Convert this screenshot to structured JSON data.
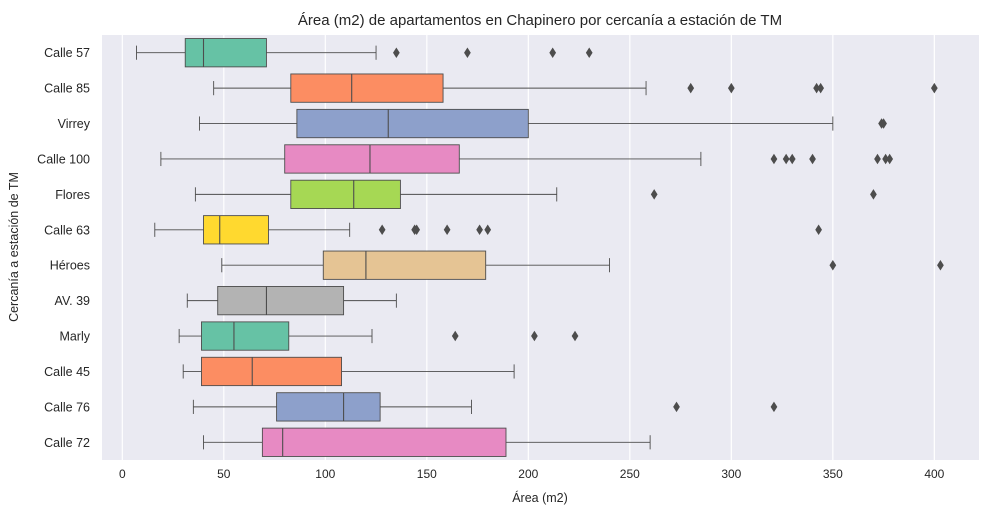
{
  "chart_data": {
    "type": "boxplot",
    "orientation": "horizontal",
    "title": "Área (m2) de apartamentos en Chapinero por cercanía a estación de TM",
    "xlabel": "Área (m2)",
    "ylabel": "Cercanía a estación de TM",
    "xlim": [
      -10,
      422
    ],
    "xticks": [
      0,
      50,
      100,
      150,
      200,
      250,
      300,
      350,
      400
    ],
    "grid": true,
    "background": "#eaeaf2",
    "categories": [
      "Calle 57",
      "Calle 85",
      "Virrey",
      "Calle 100",
      "Flores",
      "Calle 63",
      "Héroes",
      "AV. 39",
      "Marly",
      "Calle 45",
      "Calle 76",
      "Calle 72"
    ],
    "boxes": [
      {
        "category": "Calle 57",
        "color": "#66c2a5",
        "whisker_low": 7,
        "q1": 31,
        "median": 40,
        "q3": 71,
        "whisker_high": 125,
        "outliers": [
          135,
          170,
          212,
          230
        ]
      },
      {
        "category": "Calle 85",
        "color": "#fc8d62",
        "whisker_low": 45,
        "q1": 83,
        "median": 113,
        "q3": 158,
        "whisker_high": 258,
        "outliers": [
          280,
          300,
          342,
          344,
          400
        ]
      },
      {
        "category": "Virrey",
        "color": "#8da0cb",
        "whisker_low": 38,
        "q1": 86,
        "median": 131,
        "q3": 200,
        "whisker_high": 350,
        "outliers": [
          374,
          375
        ]
      },
      {
        "category": "Calle 100",
        "color": "#e78ac3",
        "whisker_low": 19,
        "q1": 80,
        "median": 122,
        "q3": 166,
        "whisker_high": 285,
        "outliers": [
          321,
          327,
          330,
          340,
          372,
          376,
          378
        ]
      },
      {
        "category": "Flores",
        "color": "#a6d854",
        "whisker_low": 36,
        "q1": 83,
        "median": 114,
        "q3": 137,
        "whisker_high": 214,
        "outliers": [
          262,
          370
        ]
      },
      {
        "category": "Calle 63",
        "color": "#ffd92f",
        "whisker_low": 16,
        "q1": 40,
        "median": 48,
        "q3": 72,
        "whisker_high": 112,
        "outliers": [
          128,
          144,
          145,
          160,
          176,
          180,
          343
        ]
      },
      {
        "category": "Héroes",
        "color": "#e5c494",
        "whisker_low": 49,
        "q1": 99,
        "median": 120,
        "q3": 179,
        "whisker_high": 240,
        "outliers": [
          350,
          403
        ]
      },
      {
        "category": "AV. 39",
        "color": "#b3b3b3",
        "whisker_low": 32,
        "q1": 47,
        "median": 71,
        "q3": 109,
        "whisker_high": 135,
        "outliers": []
      },
      {
        "category": "Marly",
        "color": "#66c2a5",
        "whisker_low": 28,
        "q1": 39,
        "median": 55,
        "q3": 82,
        "whisker_high": 123,
        "outliers": [
          164,
          203,
          223
        ]
      },
      {
        "category": "Calle 45",
        "color": "#fc8d62",
        "whisker_low": 30,
        "q1": 39,
        "median": 64,
        "q3": 108,
        "whisker_high": 193,
        "outliers": []
      },
      {
        "category": "Calle 76",
        "color": "#8da0cb",
        "whisker_low": 35,
        "q1": 76,
        "median": 109,
        "q3": 127,
        "whisker_high": 172,
        "outliers": [
          273,
          321
        ]
      },
      {
        "category": "Calle 72",
        "color": "#e78ac3",
        "whisker_low": 40,
        "q1": 69,
        "median": 79,
        "q3": 189,
        "whisker_high": 260,
        "outliers": []
      }
    ]
  }
}
